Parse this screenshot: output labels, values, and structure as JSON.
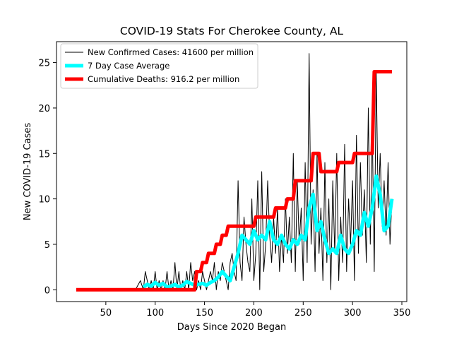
{
  "chart_data": {
    "type": "line",
    "title": "COVID-19 Stats For Cherokee County, AL",
    "xlabel": "Days Since 2020 Began",
    "ylabel": "New COVID-19 Cases",
    "xlim": [
      0,
      355
    ],
    "ylim": [
      -1.3,
      27.3
    ],
    "xticks": [
      50,
      100,
      150,
      200,
      250,
      300,
      350
    ],
    "yticks": [
      0,
      5,
      10,
      15,
      20,
      25
    ],
    "grid": false,
    "legend_position": "top-left",
    "series": [
      {
        "name": "New Confirmed Cases: 41600 per million",
        "color": "#000000",
        "x": [
          20,
          30,
          40,
          50,
          60,
          70,
          80,
          85,
          88,
          90,
          92,
          94,
          96,
          98,
          100,
          102,
          104,
          106,
          108,
          110,
          112,
          114,
          116,
          118,
          120,
          122,
          124,
          126,
          128,
          130,
          132,
          134,
          136,
          138,
          140,
          142,
          144,
          146,
          148,
          150,
          152,
          154,
          156,
          158,
          160,
          162,
          164,
          166,
          168,
          170,
          172,
          174,
          176,
          178,
          180,
          182,
          184,
          186,
          188,
          190,
          192,
          194,
          196,
          198,
          200,
          202,
          204,
          206,
          208,
          210,
          212,
          214,
          216,
          218,
          220,
          222,
          224,
          226,
          228,
          230,
          232,
          234,
          236,
          238,
          240,
          242,
          244,
          246,
          248,
          250,
          252,
          254,
          256,
          258,
          260,
          262,
          264,
          266,
          268,
          270,
          272,
          274,
          276,
          278,
          280,
          282,
          284,
          286,
          288,
          290,
          292,
          294,
          296,
          298,
          300,
          302,
          304,
          306,
          308,
          310,
          312,
          314,
          316,
          318,
          320,
          322,
          324,
          326,
          328,
          330,
          332,
          334,
          336,
          338,
          340
        ],
        "y": [
          0,
          0,
          0,
          0,
          0,
          0,
          0,
          1,
          0,
          2,
          1,
          0,
          1,
          0,
          2,
          0,
          1,
          0,
          1,
          0,
          2,
          0,
          1,
          0,
          3,
          0,
          2,
          0,
          1,
          0,
          2,
          0,
          3,
          1,
          2,
          0,
          1,
          0,
          2,
          1,
          0,
          1,
          2,
          1,
          3,
          0,
          2,
          1,
          3,
          2,
          1,
          0,
          3,
          4,
          2,
          1,
          12,
          3,
          1,
          8,
          5,
          3,
          2,
          10,
          1,
          4,
          12,
          0,
          13,
          2,
          5,
          12,
          6,
          3,
          8,
          4,
          9,
          2,
          6,
          3,
          10,
          4,
          8,
          3,
          15,
          2,
          12,
          5,
          9,
          1,
          14,
          3,
          26,
          5,
          11,
          2,
          15,
          4,
          9,
          1,
          14,
          3,
          10,
          0,
          12,
          4,
          15,
          1,
          8,
          3,
          16,
          2,
          10,
          5,
          12,
          1,
          17,
          4,
          14,
          6,
          11,
          3,
          20,
          5,
          18,
          2,
          24,
          9,
          15,
          7,
          12,
          6,
          14,
          5,
          10
        ]
      },
      {
        "name": "7 Day Case Average",
        "color": "#00ffff",
        "x": [
          88,
          92,
          96,
          100,
          104,
          108,
          112,
          116,
          120,
          124,
          128,
          132,
          136,
          140,
          144,
          148,
          152,
          156,
          160,
          164,
          168,
          172,
          176,
          180,
          184,
          188,
          192,
          196,
          200,
          204,
          208,
          212,
          216,
          220,
          224,
          228,
          232,
          236,
          240,
          244,
          248,
          252,
          256,
          260,
          264,
          268,
          272,
          276,
          280,
          284,
          288,
          292,
          296,
          300,
          304,
          308,
          312,
          316,
          320,
          324,
          328,
          332,
          336,
          340
        ],
        "y": [
          0.3,
          0.6,
          0.4,
          0.8,
          0.5,
          0.7,
          0.3,
          0.4,
          0.6,
          0.3,
          0.5,
          0.9,
          0.7,
          0.5,
          0.6,
          0.7,
          0.5,
          0.8,
          1.0,
          1.4,
          2.0,
          1.5,
          1.0,
          2.5,
          4.0,
          6.0,
          5.5,
          5.0,
          6.5,
          5.5,
          6.0,
          5.5,
          7.5,
          5.5,
          5.0,
          6.0,
          5.0,
          4.5,
          5.5,
          5.0,
          6.0,
          5.5,
          9.0,
          10.5,
          6.5,
          7.5,
          5.5,
          4.0,
          4.5,
          4.0,
          6.0,
          4.5,
          4.0,
          5.0,
          6.5,
          6.0,
          8.5,
          7.0,
          9.0,
          12.5,
          10.5,
          6.5,
          7.0,
          10.0
        ]
      },
      {
        "name": "Cumulative Deaths: 916.2 per million",
        "color": "#ff0000",
        "x": [
          20,
          140,
          142,
          146,
          148,
          152,
          154,
          160,
          162,
          166,
          168,
          172,
          174,
          200,
          202,
          210,
          212,
          220,
          222,
          232,
          234,
          240,
          242,
          258,
          260,
          266,
          268,
          284,
          286,
          300,
          302,
          320,
          322,
          340
        ],
        "y": [
          0,
          0,
          2,
          2,
          3,
          3,
          4,
          4,
          5,
          5,
          6,
          6,
          7,
          7,
          8,
          8,
          8,
          8,
          9,
          9,
          10,
          10,
          12,
          12,
          15,
          15,
          13,
          13,
          14,
          14,
          15,
          15,
          24,
          24
        ]
      }
    ]
  }
}
